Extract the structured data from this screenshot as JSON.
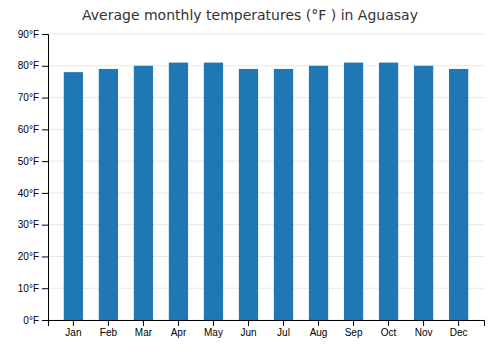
{
  "chart_data": {
    "type": "bar",
    "title": "Average monthly temperatures (°F ) in Aguasay",
    "categories": [
      "Jan",
      "Feb",
      "Mar",
      "Apr",
      "May",
      "Jun",
      "Jul",
      "Aug",
      "Sep",
      "Oct",
      "Nov",
      "Dec"
    ],
    "values": [
      78,
      79,
      80,
      81,
      81,
      79,
      79,
      80,
      81,
      81,
      80,
      79
    ],
    "ylim": [
      0,
      90
    ],
    "yticks": [
      {
        "value": 0,
        "label": "0°F"
      },
      {
        "value": 10,
        "label": "10°F"
      },
      {
        "value": 20,
        "label": "20°F"
      },
      {
        "value": 30,
        "label": "30°F"
      },
      {
        "value": 40,
        "label": "40°F"
      },
      {
        "value": 50,
        "label": "50°F"
      },
      {
        "value": 60,
        "label": "60°F"
      },
      {
        "value": 70,
        "label": "70°F"
      },
      {
        "value": 80,
        "label": "80°F"
      },
      {
        "value": 90,
        "label": "90°F"
      }
    ],
    "grid": true
  }
}
